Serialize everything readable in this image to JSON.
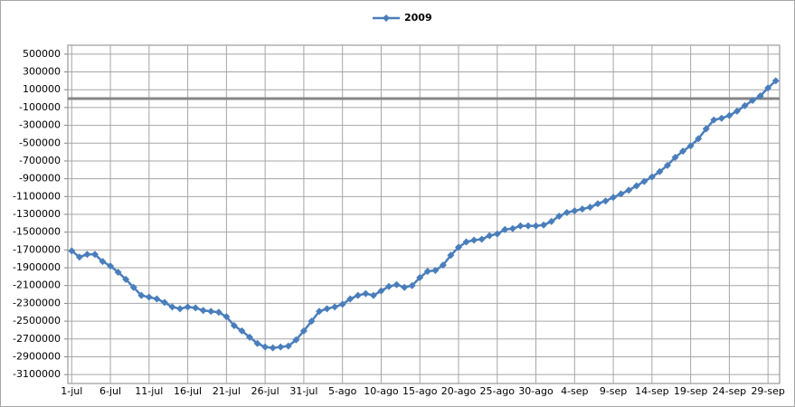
{
  "chart_data": {
    "type": "line",
    "categories": [
      "1-jul",
      null,
      null,
      null,
      null,
      "6-jul",
      null,
      null,
      null,
      null,
      "11-jul",
      null,
      null,
      null,
      null,
      "16-jul",
      null,
      null,
      null,
      null,
      "21-jul",
      null,
      null,
      null,
      null,
      "26-jul",
      null,
      null,
      null,
      null,
      "31-jul",
      null,
      null,
      null,
      null,
      "5-ago",
      null,
      null,
      null,
      null,
      "10-ago",
      null,
      null,
      null,
      null,
      "15-ago",
      null,
      null,
      null,
      null,
      "20-ago",
      null,
      null,
      null,
      null,
      "25-ago",
      null,
      null,
      null,
      null,
      "30-ago",
      null,
      null,
      null,
      null,
      "4-sep",
      null,
      null,
      null,
      null,
      "9-sep",
      null,
      null,
      null,
      null,
      "14-sep",
      null,
      null,
      null,
      null,
      "19-sep",
      null,
      null,
      null,
      null,
      "24-sep",
      null,
      null,
      null,
      null,
      "29-sep",
      null
    ],
    "series": [
      {
        "name": "2009",
        "color": "#4a7ebb",
        "values": [
          -1710000,
          -1780000,
          -1750000,
          -1750000,
          -1830000,
          -1880000,
          -1950000,
          -2030000,
          -2120000,
          -2210000,
          -2230000,
          -2250000,
          -2290000,
          -2340000,
          -2360000,
          -2340000,
          -2350000,
          -2380000,
          -2390000,
          -2400000,
          -2450000,
          -2550000,
          -2610000,
          -2680000,
          -2750000,
          -2790000,
          -2800000,
          -2790000,
          -2780000,
          -2710000,
          -2610000,
          -2500000,
          -2390000,
          -2360000,
          -2340000,
          -2310000,
          -2250000,
          -2210000,
          -2190000,
          -2210000,
          -2160000,
          -2110000,
          -2090000,
          -2120000,
          -2100000,
          -2010000,
          -1940000,
          -1930000,
          -1870000,
          -1760000,
          -1670000,
          -1610000,
          -1590000,
          -1580000,
          -1540000,
          -1520000,
          -1470000,
          -1460000,
          -1430000,
          -1430000,
          -1430000,
          -1420000,
          -1380000,
          -1320000,
          -1280000,
          -1260000,
          -1240000,
          -1220000,
          -1180000,
          -1150000,
          -1110000,
          -1070000,
          -1030000,
          -980000,
          -930000,
          -880000,
          -820000,
          -750000,
          -660000,
          -590000,
          -530000,
          -450000,
          -340000,
          -240000,
          -220000,
          -190000,
          -140000,
          -80000,
          -20000,
          30000,
          120000,
          200000
        ]
      }
    ],
    "ylim": [
      -3200000,
      600000
    ],
    "yticks": [
      -3100000,
      -2900000,
      -2700000,
      -2500000,
      -2300000,
      -2100000,
      -1900000,
      -1700000,
      -1500000,
      -1300000,
      -1100000,
      -900000,
      -700000,
      -500000,
      -300000,
      -100000,
      100000,
      300000,
      500000
    ],
    "grid": true,
    "legend": "top"
  }
}
